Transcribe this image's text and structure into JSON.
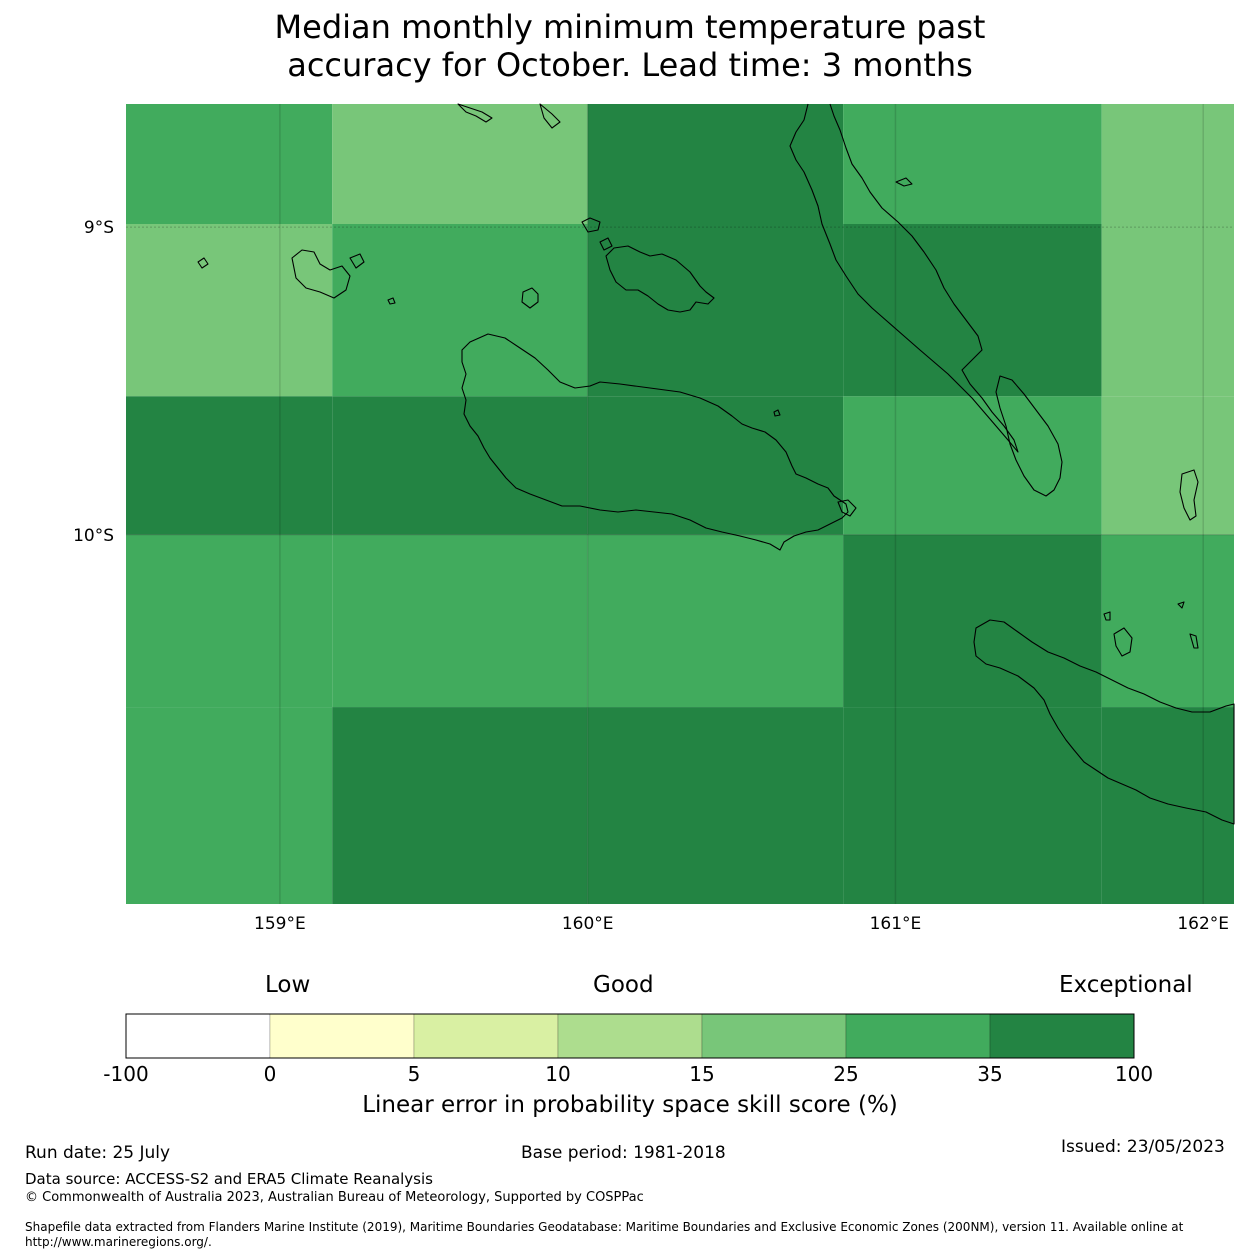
{
  "title_line1": "Median monthly minimum temperature past",
  "title_line2": "accuracy for October. Lead time: 3 months",
  "map": {
    "x_ticks": [
      "159°E",
      "160°E",
      "161°E",
      "162°E"
    ],
    "y_ticks": [
      "9°S",
      "10°S"
    ],
    "lon_range": [
      158.5,
      162.1
    ],
    "lat_range": [
      -8.6,
      -11.2
    ],
    "grid_cells": [
      {
        "lon": [
          158.5,
          159.17
        ],
        "lat": [
          -8.6,
          -8.99
        ],
        "category": 6
      },
      {
        "lon": [
          159.17,
          160.0
        ],
        "lat": [
          -8.6,
          -8.99
        ],
        "category": 5
      },
      {
        "lon": [
          160.0,
          160.83
        ],
        "lat": [
          -8.6,
          -8.99
        ],
        "category": 7
      },
      {
        "lon": [
          160.83,
          161.67
        ],
        "lat": [
          -8.6,
          -8.99
        ],
        "category": 6
      },
      {
        "lon": [
          161.67,
          162.1
        ],
        "lat": [
          -8.6,
          -8.99
        ],
        "category": 5
      },
      {
        "lon": [
          158.5,
          159.17
        ],
        "lat": [
          -8.99,
          -9.55
        ],
        "category": 5
      },
      {
        "lon": [
          159.17,
          160.0
        ],
        "lat": [
          -8.99,
          -9.55
        ],
        "category": 6
      },
      {
        "lon": [
          160.0,
          160.83
        ],
        "lat": [
          -8.99,
          -9.55
        ],
        "category": 7
      },
      {
        "lon": [
          160.83,
          161.67
        ],
        "lat": [
          -8.99,
          -9.55
        ],
        "category": 7
      },
      {
        "lon": [
          161.67,
          162.1
        ],
        "lat": [
          -8.99,
          -9.55
        ],
        "category": 5
      },
      {
        "lon": [
          158.5,
          159.17
        ],
        "lat": [
          -9.55,
          -10.0
        ],
        "category": 7
      },
      {
        "lon": [
          159.17,
          160.0
        ],
        "lat": [
          -9.55,
          -10.0
        ],
        "category": 7
      },
      {
        "lon": [
          160.0,
          160.83
        ],
        "lat": [
          -9.55,
          -10.0
        ],
        "category": 7
      },
      {
        "lon": [
          160.83,
          161.67
        ],
        "lat": [
          -9.55,
          -10.0
        ],
        "category": 6
      },
      {
        "lon": [
          161.67,
          162.1
        ],
        "lat": [
          -9.55,
          -10.0
        ],
        "category": 5
      },
      {
        "lon": [
          158.5,
          159.17
        ],
        "lat": [
          -10.0,
          -10.56
        ],
        "category": 6
      },
      {
        "lon": [
          159.17,
          160.0
        ],
        "lat": [
          -10.0,
          -10.56
        ],
        "category": 6
      },
      {
        "lon": [
          160.0,
          160.83
        ],
        "lat": [
          -10.0,
          -10.56
        ],
        "category": 6
      },
      {
        "lon": [
          160.83,
          161.67
        ],
        "lat": [
          -10.0,
          -10.56
        ],
        "category": 7
      },
      {
        "lon": [
          161.67,
          162.1
        ],
        "lat": [
          -10.0,
          -10.56
        ],
        "category": 6
      },
      {
        "lon": [
          158.5,
          159.17
        ],
        "lat": [
          -10.56,
          -11.2
        ],
        "category": 6
      },
      {
        "lon": [
          159.17,
          160.0
        ],
        "lat": [
          -10.56,
          -11.2
        ],
        "category": 7
      },
      {
        "lon": [
          160.0,
          160.83
        ],
        "lat": [
          -10.56,
          -11.2
        ],
        "category": 7
      },
      {
        "lon": [
          160.83,
          161.67
        ],
        "lat": [
          -10.56,
          -11.2
        ],
        "category": 7
      },
      {
        "lon": [
          161.67,
          162.1
        ],
        "lat": [
          -10.56,
          -11.2
        ],
        "category": 7
      }
    ]
  },
  "legend": {
    "categories": [
      "Low",
      "Good",
      "Exceptional"
    ],
    "ticks": [
      "-100",
      "0",
      "5",
      "10",
      "15",
      "25",
      "35",
      "100"
    ],
    "colors": [
      "#ffffff",
      "#ffffcc",
      "#d9f0a3",
      "#addd8e",
      "#78c679",
      "#41ab5d",
      "#238443"
    ],
    "label": "Linear error in probability space skill score (%)"
  },
  "footer": {
    "run_date": "Run date: 25 July",
    "base_period": "Base period: 1981-2018",
    "issued": "Issued: 23/05/2023",
    "data_source": "Data source: ACCESS-S2 and ERA5 Climate Reanalysis",
    "copyright": "© Commonwealth of Australia 2023, Australian Bureau of Meteorology, Supported by COSPPac",
    "shapefile": "Shapefile data extracted from Flanders Marine Institute (2019), Maritime Boundaries Geodatabase: Maritime Boundaries and Exclusive Economic Zones (200NM), version 11. Available online at http://www.marineregions.org/."
  }
}
